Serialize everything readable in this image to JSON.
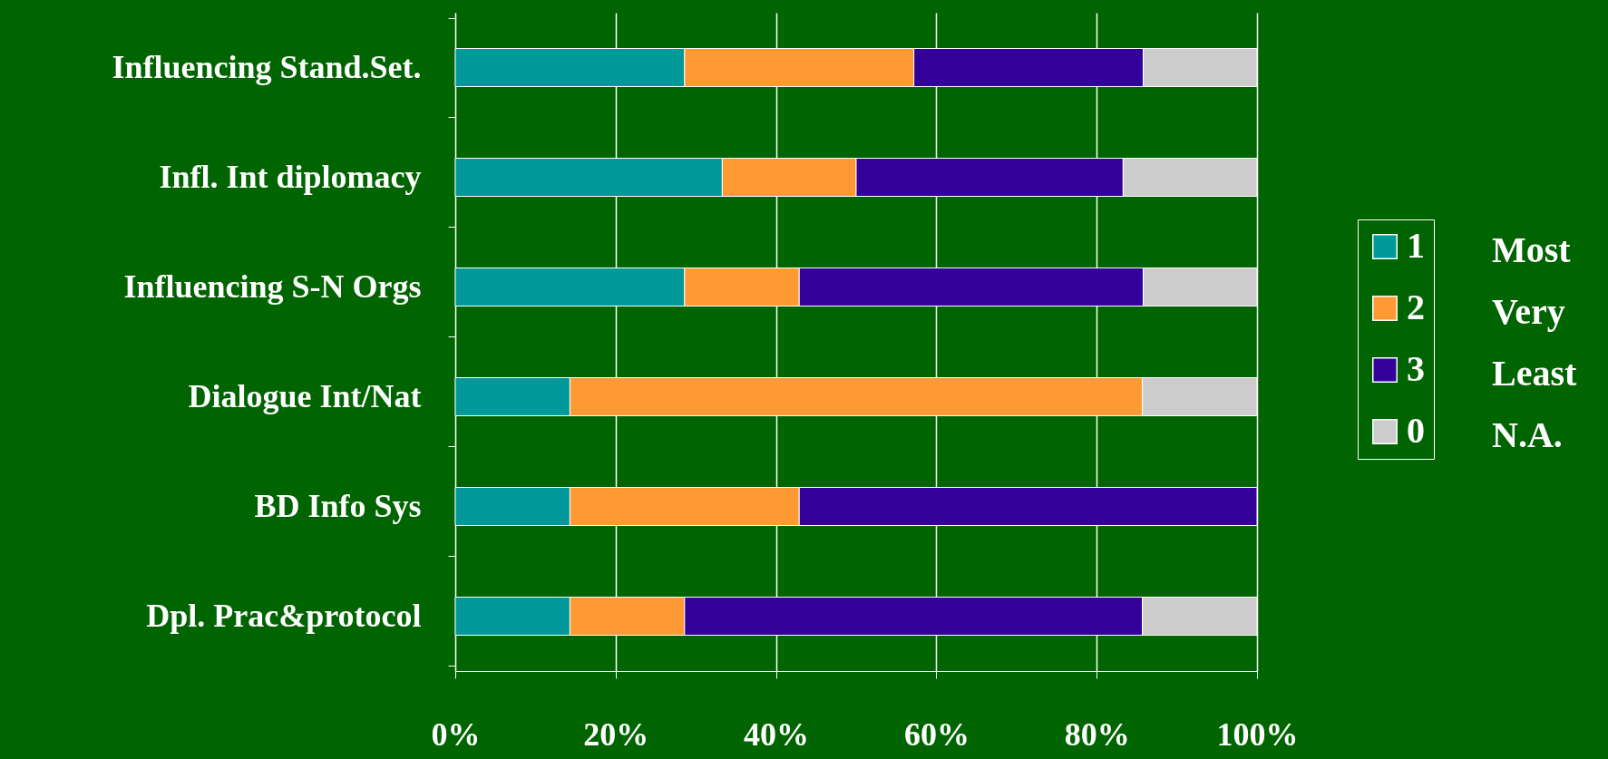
{
  "chart_data": {
    "type": "bar",
    "orientation": "horizontal",
    "stacked": true,
    "categories": [
      "Influencing Stand.Set.",
      "Infl. Int diplomacy",
      "Influencing S-N Orgs",
      "Dialogue Int/Nat",
      "BD Info Sys",
      "Dpl. Prac&protocol"
    ],
    "series": [
      {
        "name": "1",
        "color": "#009999",
        "values": [
          28.6,
          33.3,
          28.6,
          14.3,
          14.3,
          14.3
        ]
      },
      {
        "name": "2",
        "color": "#ff9933",
        "values": [
          28.6,
          16.7,
          14.3,
          71.4,
          28.6,
          14.3
        ]
      },
      {
        "name": "3",
        "color": "#330099",
        "values": [
          28.6,
          33.3,
          42.9,
          0,
          57.1,
          57.1
        ]
      },
      {
        "name": "0",
        "color": "#cccccc",
        "values": [
          14.2,
          16.7,
          14.2,
          14.3,
          0,
          14.3
        ]
      }
    ],
    "xlim": [
      0,
      100
    ],
    "xticks": [
      {
        "value": 0,
        "label": "0%"
      },
      {
        "value": 20,
        "label": "20%"
      },
      {
        "value": 40,
        "label": "40%"
      },
      {
        "value": 60,
        "label": "60%"
      },
      {
        "value": 80,
        "label": "80%"
      },
      {
        "value": 100,
        "label": "100%"
      }
    ],
    "grid": "x",
    "legend": "right",
    "annotations": [
      "Most",
      "Very",
      "Least",
      "N.A."
    ]
  }
}
